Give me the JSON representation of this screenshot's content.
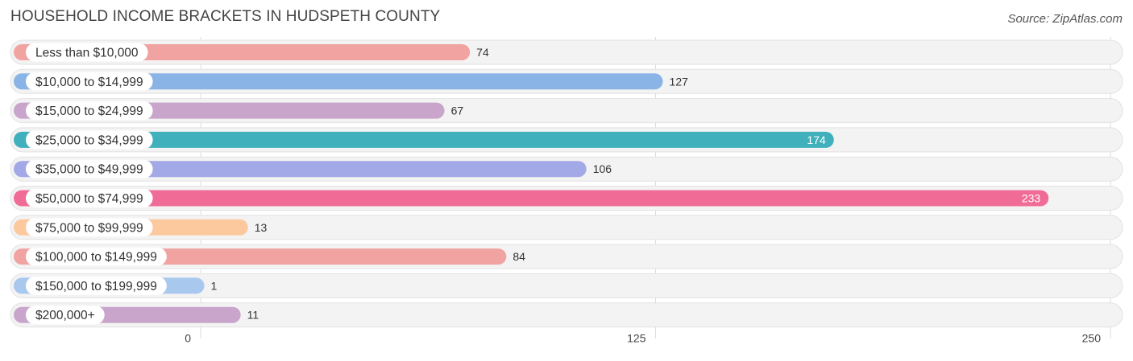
{
  "title": "HOUSEHOLD INCOME BRACKETS IN HUDSPETH COUNTY",
  "source": "Source: ZipAtlas.com",
  "chart_data": {
    "type": "bar",
    "orientation": "horizontal",
    "categories": [
      "Less than $10,000",
      "$10,000 to $14,999",
      "$15,000 to $24,999",
      "$25,000 to $34,999",
      "$35,000 to $49,999",
      "$50,000 to $74,999",
      "$75,000 to $99,999",
      "$100,000 to $149,999",
      "$150,000 to $199,999",
      "$200,000+"
    ],
    "values": [
      74,
      127,
      67,
      174,
      106,
      233,
      13,
      84,
      1,
      11
    ],
    "value_labels": [
      "74",
      "127",
      "67",
      "174",
      "106",
      "233",
      "13",
      "84",
      "1",
      "11"
    ],
    "colors": [
      "#f0a3a1",
      "#8ab4e6",
      "#c9a5cb",
      "#3fb0bc",
      "#a3a9e6",
      "#f06c97",
      "#fcc99e",
      "#f0a3a1",
      "#a9c8ee",
      "#c9a5cb"
    ],
    "xlim": [
      0,
      250
    ],
    "xticks": [
      0,
      125,
      250
    ],
    "xtick_labels": [
      "0",
      "125",
      "250"
    ],
    "grid": true,
    "legend": "none"
  }
}
